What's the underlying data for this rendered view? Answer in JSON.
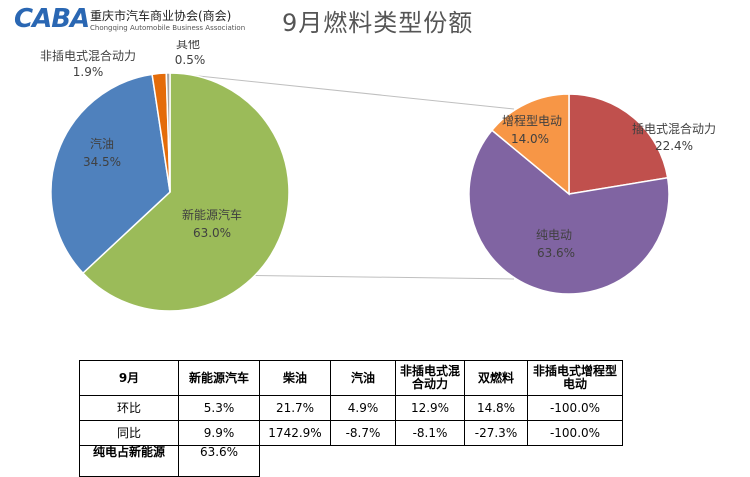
{
  "logo": {
    "mark": "CABA",
    "cn": "重庆市汽车商业协会(商会)",
    "en": "Chongqing Automobile Business Association"
  },
  "chart_data": [
    {
      "type": "pie",
      "title": "9月燃料类型份额",
      "slices": [
        {
          "label": "新能源汽车",
          "value": 63.0,
          "text": "63.0%",
          "color": "#9bbb59"
        },
        {
          "label": "汽油",
          "value": 34.5,
          "text": "34.5%",
          "color": "#4f81bd"
        },
        {
          "label": "非插电式混合动力",
          "value": 1.9,
          "text": "1.9%",
          "color": "#e46c0a"
        },
        {
          "label": "其他",
          "value": 0.5,
          "text": "0.5%",
          "color": "#a5a5a5"
        }
      ]
    },
    {
      "type": "pie",
      "slices": [
        {
          "label": "插电式混合动力",
          "value": 22.4,
          "text": "22.4%",
          "color": "#c0504d"
        },
        {
          "label": "纯电动",
          "value": 63.6,
          "text": "63.6%",
          "color": "#8064a2"
        },
        {
          "label": "增程型电动",
          "value": 14.0,
          "text": "14.0%",
          "color": "#f79646"
        }
      ]
    }
  ],
  "table": {
    "headers": [
      "9月",
      "新能源汽车",
      "柴油",
      "汽油",
      "非插电式混合动力",
      "双燃料",
      "非插电式增程型电动"
    ],
    "rows": [
      [
        "环比",
        "5.3%",
        "21.7%",
        "4.9%",
        "12.9%",
        "14.8%",
        "-100.0%"
      ],
      [
        "同比",
        "9.9%",
        "1742.9%",
        "-8.7%",
        "-8.1%",
        "-27.3%",
        "-100.0%"
      ]
    ],
    "last_row_label": "纯电占新能源",
    "last_row_value": "63.6%"
  }
}
